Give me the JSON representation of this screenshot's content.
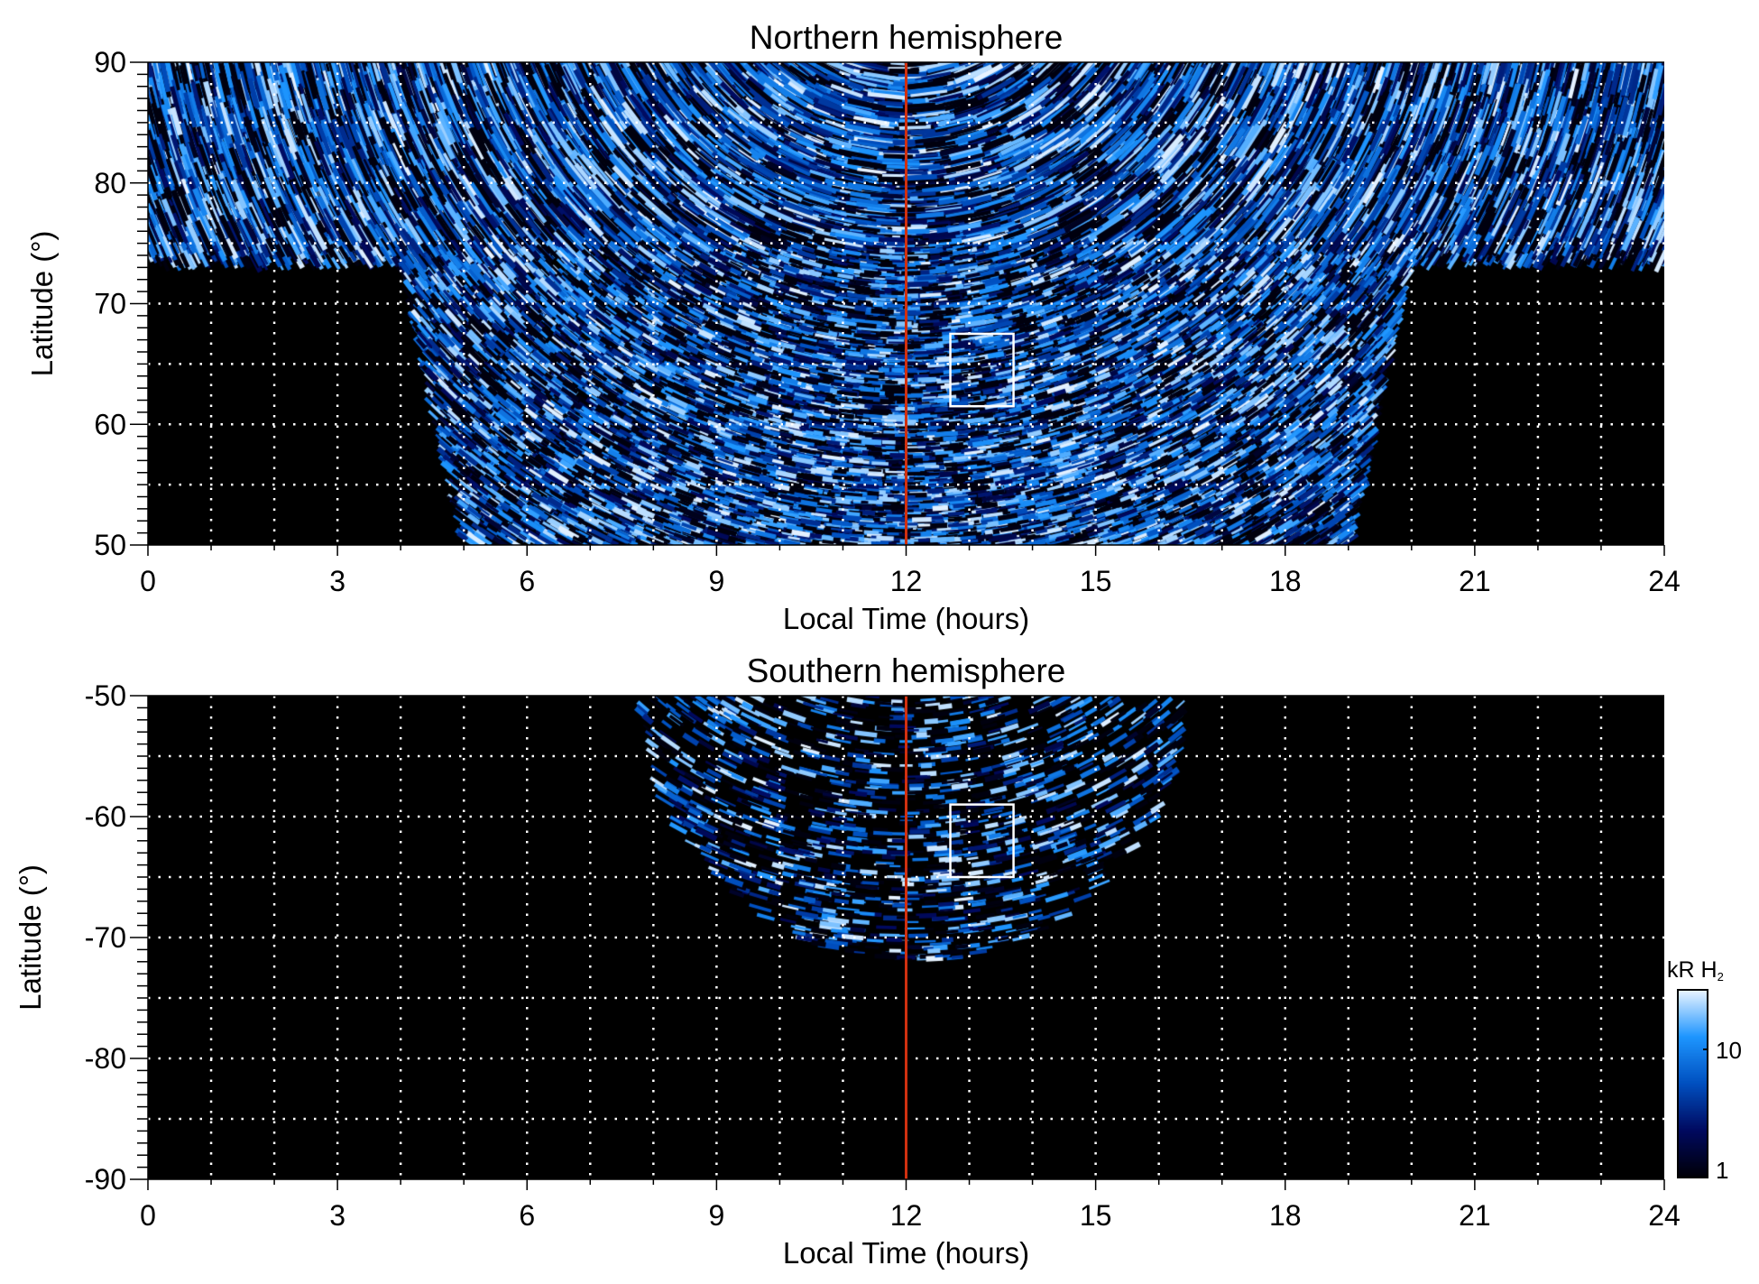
{
  "chart_data": [
    {
      "type": "heatmap",
      "title": "Northern hemisphere",
      "xlabel": "Local Time (hours)",
      "ylabel": "Latitude (°)",
      "xlim": [
        0,
        24
      ],
      "ylim": [
        50,
        90
      ],
      "xticks": [
        "0",
        "3",
        "6",
        "9",
        "12",
        "15",
        "18",
        "21",
        "24"
      ],
      "yticks": [
        "50",
        "60",
        "70",
        "80",
        "90"
      ],
      "grid": true,
      "grid_x_step": 1,
      "grid_y_step": 5,
      "marker_line_lt": 12,
      "box": {
        "lt": [
          12.7,
          13.7
        ],
        "lat": [
          61.5,
          67.5
        ]
      },
      "coverage": "lat >= ~73° at LT 0-4 and 20-24; extends down to 50° between LT ~5 and ~19"
    },
    {
      "type": "heatmap",
      "title": "Southern hemisphere",
      "xlabel": "Local Time (hours)",
      "ylabel": "Latitude (°)",
      "xlim": [
        0,
        24
      ],
      "ylim": [
        -90,
        -50
      ],
      "xticks": [
        "0",
        "3",
        "6",
        "9",
        "12",
        "15",
        "18",
        "21",
        "24"
      ],
      "yticks": [
        "-90",
        "-80",
        "-70",
        "-60",
        "-50"
      ],
      "grid": true,
      "grid_x_step": 1,
      "grid_y_step": 5,
      "marker_line_lt": 12,
      "box": {
        "lt": [
          12.7,
          13.7
        ],
        "lat": [
          -65,
          -59
        ]
      },
      "coverage": "LT ~8-16.5, from -50° down to about -72° at noon"
    }
  ],
  "colorbar": {
    "label": "kR H",
    "label_sub": "2",
    "scale": "log",
    "range": [
      1,
      30
    ],
    "ticks": [
      "1",
      "10"
    ],
    "colors": [
      "#000008",
      "#000a60",
      "#0050c0",
      "#1e96ff",
      "#eaf4ff"
    ]
  },
  "colors": {
    "marker_line": "#d03010",
    "box": "#ffffff",
    "background": "#000000"
  }
}
